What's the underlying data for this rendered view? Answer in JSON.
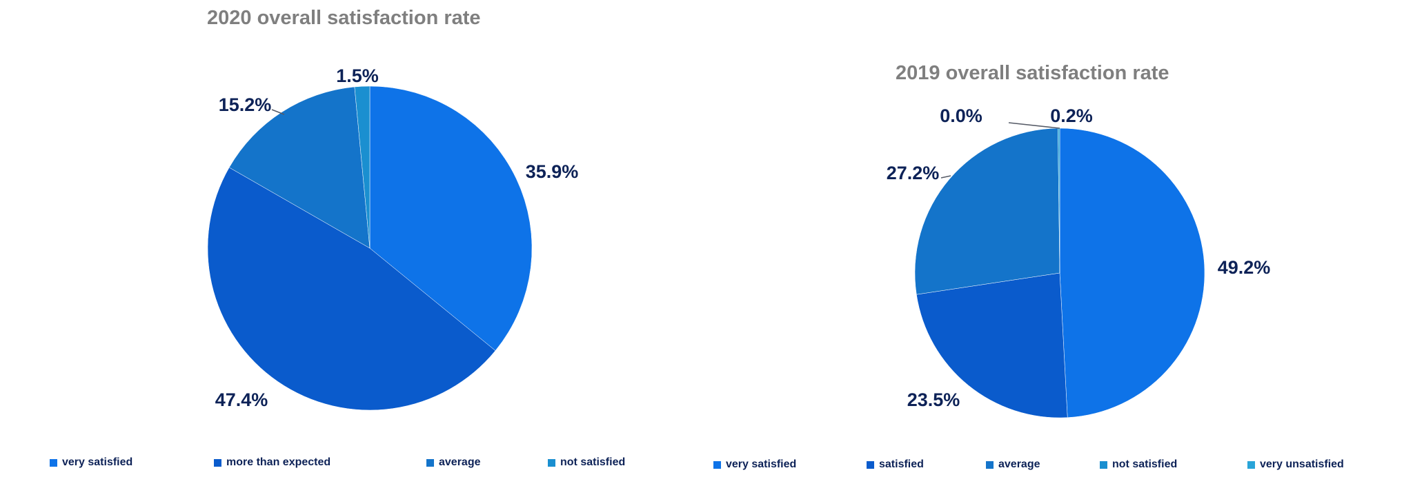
{
  "chart_data": [
    {
      "type": "pie",
      "title": "2020 overall satisfaction rate",
      "labels": [
        "very satisfied",
        "more than expected",
        "average",
        "not satisfied"
      ],
      "values": [
        35.9,
        47.4,
        15.2,
        1.5
      ],
      "value_labels": [
        "35.9%",
        "47.4%",
        "15.2%",
        "1.5%"
      ],
      "colors": [
        "#0e73e8",
        "#0a5bcc",
        "#1474ca",
        "#1a8fd0"
      ],
      "legend_position": "bottom"
    },
    {
      "type": "pie",
      "title": "2019 overall satisfaction rate",
      "labels": [
        "very satisfied",
        "satisfied",
        "average",
        "not satisfied",
        "very unsatisfied"
      ],
      "values": [
        49.2,
        23.5,
        27.2,
        0.0,
        0.2
      ],
      "value_labels": [
        "49.2%",
        "23.5%",
        "27.2%",
        "0.0%",
        "0.2%"
      ],
      "colors": [
        "#0e73e8",
        "#0a5bcc",
        "#1474ca",
        "#1a8fd0",
        "#29a4d8"
      ],
      "legend_position": "bottom"
    }
  ]
}
